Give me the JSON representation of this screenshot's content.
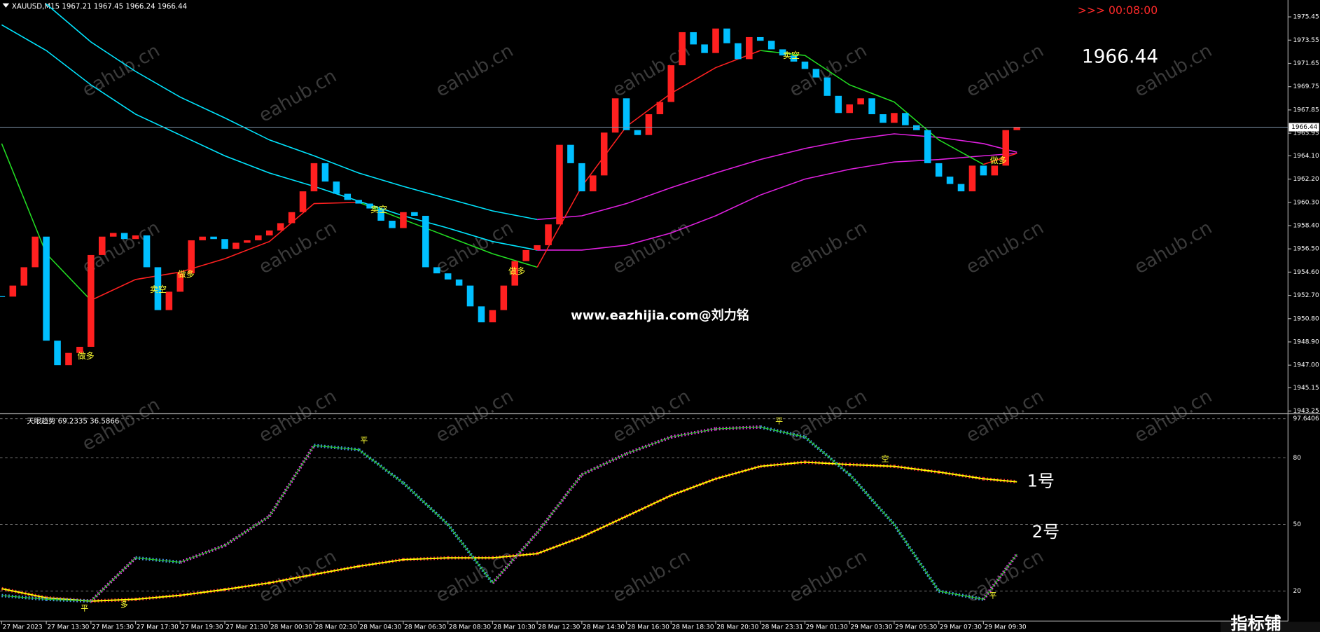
{
  "chart_data": [
    {
      "type": "candlestick",
      "title": "XAUUSD,M15  1967.21 1967.45 1966.24 1966.44",
      "timer": ">>> 00:08:00",
      "caption": "www.eazhijia.com@刘力铭",
      "watermark": "eahub.cn",
      "logo": "指标铺",
      "last_price": 1966.44,
      "up_color": "#ff2020",
      "down_color": "#00bfff",
      "signals": [
        "做多",
        "卖空",
        "做多",
        "卖空",
        "做多",
        "卖空",
        "做多"
      ],
      "xlim": [
        -0.15,
        115.3
      ],
      "xticks": [
        {
          "value": 0,
          "label": "27 Mar 2023"
        },
        {
          "value": 4,
          "label": "27 Mar 13:30"
        },
        {
          "value": 8,
          "label": "27 Mar 15:30"
        },
        {
          "value": 12,
          "label": "27 Mar 17:30"
        },
        {
          "value": 16,
          "label": "27 Mar 19:30"
        },
        {
          "value": 20,
          "label": "27 Mar 21:30"
        },
        {
          "value": 24,
          "label": "28 Mar 00:30"
        },
        {
          "value": 28,
          "label": "28 Mar 02:30"
        },
        {
          "value": 32,
          "label": "28 Mar 04:30"
        },
        {
          "value": 36,
          "label": "28 Mar 06:30"
        },
        {
          "value": 40,
          "label": "28 Mar 08:30"
        },
        {
          "value": 44,
          "label": "28 Mar 10:30"
        },
        {
          "value": 48,
          "label": "28 Mar 12:30"
        },
        {
          "value": 52,
          "label": "28 Mar 14:30"
        },
        {
          "value": 56,
          "label": "28 Mar 16:30"
        },
        {
          "value": 60,
          "label": "28 Mar 18:30"
        },
        {
          "value": 64,
          "label": "28 Mar 20:30"
        },
        {
          "value": 68,
          "label": "28 Mar 23:31"
        },
        {
          "value": 72,
          "label": "29 Mar 01:30"
        },
        {
          "value": 76,
          "label": "29 Mar 03:30"
        },
        {
          "value": 80,
          "label": "29 Mar 05:30"
        },
        {
          "value": 84,
          "label": "29 Mar 07:30"
        },
        {
          "value": 88,
          "label": "29 Mar 09:30"
        }
      ],
      "ylim": [
        1943.1,
        1976.83
      ],
      "yticks": [
        1975.45,
        1973.55,
        1971.65,
        1969.75,
        1967.85,
        1965.95,
        {
          "value": 1964.1,
          "label": "1964.10"
        },
        {
          "value": 1962.2,
          "label": "1962.20"
        },
        {
          "value": 1960.3,
          "label": "1960.30"
        },
        {
          "value": 1958.4,
          "label": "1958.40"
        },
        {
          "value": 1956.5,
          "label": "1956.50"
        },
        {
          "value": 1954.6,
          "label": "1954.60"
        },
        {
          "value": 1952.7,
          "label": "1952.70"
        },
        {
          "value": 1950.8,
          "label": "1950.80"
        },
        {
          "value": 1948.9,
          "label": "1948.90"
        },
        {
          "value": 1947,
          "label": "1947.00"
        },
        1945.15,
        1943.25
      ],
      "x": [
        0,
        1,
        2,
        3,
        4,
        5,
        6,
        7,
        8,
        9,
        10,
        11,
        12,
        13,
        14,
        15,
        16,
        17,
        18,
        19,
        20,
        21,
        22,
        23,
        24,
        25,
        26,
        27,
        28,
        29,
        30,
        31,
        32,
        33,
        34,
        35,
        36,
        37,
        38,
        39,
        40,
        41,
        42,
        43,
        44,
        45,
        46,
        47,
        48,
        49,
        50,
        51,
        52,
        53,
        54,
        55,
        56,
        57,
        58,
        59,
        60,
        61,
        62,
        63,
        64,
        65,
        66,
        67,
        68,
        69,
        70,
        71,
        72,
        73,
        74,
        75,
        76,
        77,
        78,
        79,
        80,
        81,
        82,
        83,
        84,
        85,
        86,
        87,
        88,
        89,
        90,
        91
      ],
      "values": [
        1952.6,
        1953.5,
        1955,
        1957.5,
        1949,
        1947,
        1948,
        1948.5,
        1956,
        1957.5,
        1957.8,
        1957.3,
        1957.6,
        1955,
        1951.5,
        1953,
        1954.5,
        1957.2,
        1957.5,
        1957.3,
        1956.5,
        1957,
        1957.2,
        1957.6,
        1958,
        1958.6,
        1959.5,
        1961.2,
        1963.5,
        1962,
        1961,
        1960.5,
        1960.2,
        1959.8,
        1958.8,
        1958.2,
        1959.5,
        1959.2,
        1955,
        1954.5,
        1954,
        1953.5,
        1951.8,
        1950.5,
        1951.5,
        1953.5,
        1955.5,
        1956.4,
        1956.8,
        1958.5,
        1965,
        1963.5,
        1961.2,
        1962.5,
        1966,
        1968.8,
        1966.2,
        1965.8,
        1967.5,
        1968.5,
        1971.5,
        1974.2,
        1973.2,
        1972.5,
        1974.5,
        1973.3,
        1972,
        1973.8,
        1973.5,
        1972.8,
        1972.3,
        1971.8,
        1971.2,
        1970.5,
        1969,
        1967.6,
        1968.3,
        1968.8,
        1967.5,
        1966.8,
        1967.6,
        1966.6,
        1966.2,
        1963.5,
        1962.4,
        1961.8,
        1961.2,
        1963.3,
        1962.5,
        1963.3,
        1966.2,
        1966.44
      ],
      "lines": [
        {
          "color": "#00e5ff",
          "x": [
            0,
            4,
            8,
            12,
            16,
            20,
            24,
            28,
            32,
            36,
            40,
            44,
            48,
            52,
            56,
            60,
            64,
            68,
            72,
            76,
            80,
            84,
            88,
            91
          ],
          "values": [
            null,
            1976.5,
            1973.4,
            1971,
            1968.9,
            1967.2,
            1965.4,
            1964.1,
            1962.7,
            1961.6,
            1960.6,
            1959.6,
            1958.9,
            null,
            null,
            null,
            null,
            null,
            null,
            null,
            null,
            null,
            null,
            null
          ]
        },
        {
          "color": "#e020e0",
          "x": [
            0,
            4,
            8,
            12,
            16,
            20,
            24,
            28,
            32,
            36,
            40,
            44,
            48,
            52,
            56,
            60,
            64,
            68,
            72,
            76,
            80,
            84,
            88,
            91
          ],
          "values": [
            null,
            null,
            null,
            null,
            null,
            null,
            null,
            null,
            null,
            null,
            null,
            null,
            1958.9,
            1959.2,
            1960.2,
            1961.5,
            1962.7,
            1963.8,
            1964.7,
            1965.4,
            1965.9,
            1965.6,
            1965.1,
            1964.4
          ]
        },
        {
          "color": "#00e5ff",
          "x": [
            0,
            4,
            8,
            12,
            16,
            20,
            24,
            28,
            32,
            36,
            40,
            44,
            48,
            52,
            56,
            60,
            64,
            68,
            72,
            76,
            80,
            84,
            88,
            91
          ],
          "values": [
            1974.8,
            1972.7,
            1969.9,
            1967.5,
            1965.8,
            1964.1,
            1962.7,
            1961.6,
            1960.4,
            1959.2,
            1958.2,
            1957.1,
            1956.4,
            null,
            null,
            null,
            null,
            null,
            null,
            null,
            null,
            null,
            null,
            null
          ]
        },
        {
          "color": "#e020e0",
          "x": [
            0,
            4,
            8,
            12,
            16,
            20,
            24,
            28,
            32,
            36,
            40,
            44,
            48,
            52,
            56,
            60,
            64,
            68,
            72,
            76,
            80,
            84,
            88,
            91
          ],
          "values": [
            null,
            null,
            null,
            null,
            null,
            null,
            null,
            null,
            null,
            null,
            null,
            null,
            1956.4,
            1956.4,
            1956.8,
            1957.8,
            1959.2,
            1960.9,
            1962.2,
            1963,
            1963.6,
            1963.8,
            1964.1,
            1964.3
          ]
        },
        {
          "color": "#22dd22",
          "x": [
            0,
            4,
            8,
            12,
            16,
            20,
            24,
            28,
            32,
            36,
            40,
            44,
            48,
            52,
            56,
            60,
            64,
            68,
            72,
            76,
            80,
            84,
            88,
            91
          ],
          "values": [
            1965.1,
            1956.1,
            1952.3,
            null,
            null,
            null,
            null,
            null,
            1960.3,
            1958.9,
            1957.5,
            1956.1,
            1955,
            null,
            null,
            null,
            null,
            1972.7,
            1972.3,
            1969.9,
            1968.5,
            1965.4,
            1963.4,
            null
          ]
        },
        {
          "color": "#ff2020",
          "x": [
            0,
            4,
            8,
            12,
            16,
            20,
            24,
            28,
            32,
            36,
            40,
            44,
            48,
            52,
            56,
            60,
            64,
            68,
            72,
            76,
            80,
            84,
            88,
            91
          ],
          "values": [
            null,
            null,
            1952.3,
            1954,
            1954.6,
            1955.7,
            1957.1,
            1960.2,
            1960.3,
            null,
            null,
            null,
            1955,
            1961.6,
            1966.5,
            1969.2,
            1971.3,
            1972.7,
            null,
            null,
            null,
            null,
            1963.4,
            1964.3
          ]
        }
      ]
    },
    {
      "type": "line",
      "title": "天眼趋势 69.2335 36.5866",
      "signals": [
        "平",
        "平",
        "多",
        "平",
        "空",
        "平"
      ],
      "xlim": [
        -0.15,
        115.3
      ],
      "ylim": [
        6.9,
        99.5
      ],
      "yticks": [
        20,
        50,
        80,
        97.6406
      ],
      "grid": true,
      "rise_color": "#ff33ff",
      "fall_color": "#4aa3ff",
      "series": [
        {
          "name": "1号",
          "color": "#ffff00",
          "x": [
            0,
            4,
            8,
            12,
            16,
            20,
            24,
            28,
            32,
            36,
            40,
            44,
            48,
            52,
            56,
            60,
            64,
            68,
            72,
            76,
            80,
            84,
            88,
            91
          ],
          "values": [
            21.1,
            17,
            15.5,
            16.3,
            18.1,
            20.7,
            23.7,
            27.5,
            31.2,
            34.2,
            35,
            35,
            36.9,
            44.4,
            53.7,
            63.1,
            70.6,
            76.2,
            78.1,
            77,
            76.2,
            73.6,
            70.6,
            69.2335
          ]
        },
        {
          "name": "2号",
          "color": "#22cc22",
          "x": [
            0,
            4,
            8,
            12,
            16,
            20,
            24,
            28,
            32,
            36,
            40,
            44,
            48,
            52,
            56,
            60,
            64,
            68,
            72,
            76,
            80,
            84,
            88,
            91
          ],
          "values": [
            18,
            16.3,
            15.5,
            35,
            33,
            40.6,
            53.7,
            85.6,
            83.7,
            68.7,
            50,
            23.7,
            46.2,
            72.5,
            81.9,
            89.4,
            93.1,
            93.9,
            89.4,
            72.5,
            50,
            20,
            16.3,
            36.5866
          ]
        }
      ]
    }
  ]
}
